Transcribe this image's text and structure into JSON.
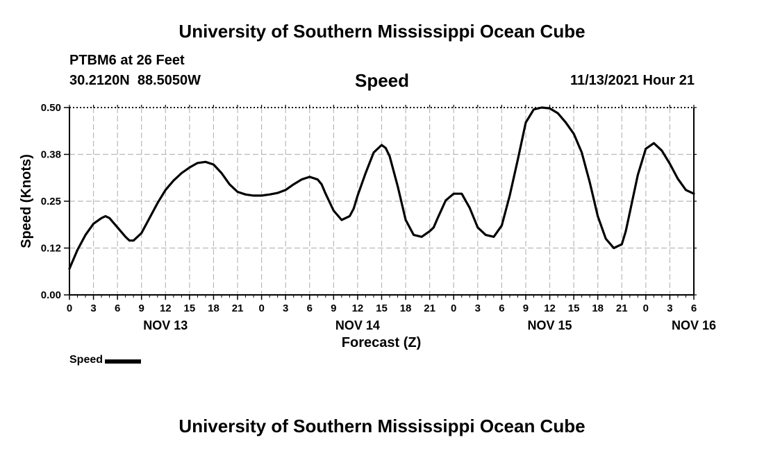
{
  "header": {
    "title": "University of Southern Mississippi Ocean Cube",
    "station": "PTBM6 at 26 Feet",
    "coords": "30.2120N  88.5050W",
    "variable": "Speed",
    "datetime": "11/13/2021 Hour 21"
  },
  "footer": {
    "title": "University of Southern Mississippi Ocean Cube"
  },
  "legend": {
    "label": "Speed"
  },
  "chart_data": {
    "type": "line",
    "title": "Speed",
    "xlabel": "Forecast (Z)",
    "ylabel": "Speed (Knots)",
    "ylim": [
      0,
      0.5
    ],
    "xlim": [
      0,
      78
    ],
    "x_unit": "hours since NOV 13 00Z",
    "y_ticks": [
      "0.00",
      "0.12",
      "0.25",
      "0.38",
      "0.50"
    ],
    "y_tick_values": [
      0,
      0.125,
      0.25,
      0.375,
      0.5
    ],
    "x_tick_labels": [
      "0",
      "3",
      "6",
      "9",
      "12",
      "15",
      "18",
      "21",
      "0",
      "3",
      "6",
      "9",
      "12",
      "15",
      "18",
      "21",
      "0",
      "3",
      "6",
      "9",
      "12",
      "15",
      "18",
      "21",
      "0",
      "3",
      "6"
    ],
    "date_labels": [
      {
        "label": "NOV 13",
        "hour": 12
      },
      {
        "label": "NOV 14",
        "hour": 36
      },
      {
        "label": "NOV 15",
        "hour": 60
      },
      {
        "label": "NOV 16",
        "hour": 78
      }
    ],
    "grid": true,
    "series": [
      {
        "name": "Speed",
        "color": "#000000",
        "x": [
          0,
          1,
          2,
          3,
          4,
          4.5,
          5,
          6,
          7,
          7.5,
          8,
          9,
          10,
          11,
          12,
          13,
          14,
          15,
          16,
          17,
          18,
          19,
          20,
          21,
          22,
          23,
          24,
          25,
          26,
          27,
          28,
          29,
          30,
          31,
          31.5,
          32,
          33,
          34,
          35,
          35.5,
          36,
          37,
          38,
          39,
          39.5,
          40,
          41,
          42,
          43,
          44,
          45,
          45.5,
          46,
          47,
          48,
          49,
          50,
          51,
          52,
          53,
          54,
          55,
          56,
          56.5,
          57,
          58,
          59,
          60,
          61,
          62,
          63,
          64,
          64.5,
          65,
          66,
          67,
          68,
          69,
          69.5,
          70,
          71,
          72,
          73,
          74,
          75,
          76,
          77,
          78
        ],
        "values": [
          0.07,
          0.12,
          0.16,
          0.19,
          0.205,
          0.21,
          0.205,
          0.18,
          0.155,
          0.145,
          0.145,
          0.165,
          0.205,
          0.245,
          0.28,
          0.305,
          0.325,
          0.34,
          0.352,
          0.355,
          0.348,
          0.325,
          0.295,
          0.275,
          0.268,
          0.265,
          0.265,
          0.268,
          0.272,
          0.28,
          0.295,
          0.308,
          0.315,
          0.308,
          0.295,
          0.27,
          0.225,
          0.2,
          0.21,
          0.23,
          0.265,
          0.325,
          0.38,
          0.4,
          0.392,
          0.37,
          0.29,
          0.2,
          0.16,
          0.155,
          0.17,
          0.18,
          0.205,
          0.252,
          0.27,
          0.27,
          0.232,
          0.18,
          0.16,
          0.155,
          0.185,
          0.265,
          0.36,
          0.41,
          0.46,
          0.495,
          0.5,
          0.498,
          0.485,
          0.46,
          0.43,
          0.38,
          0.34,
          0.3,
          0.21,
          0.15,
          0.125,
          0.135,
          0.17,
          0.22,
          0.32,
          0.39,
          0.405,
          0.385,
          0.35,
          0.31,
          0.28,
          0.27
        ]
      }
    ]
  }
}
